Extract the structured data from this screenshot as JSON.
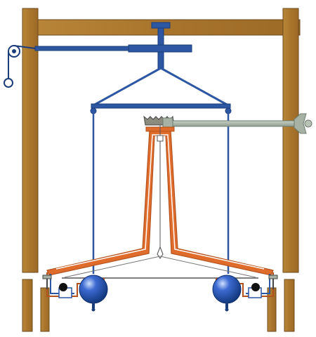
{
  "figure": {
    "description_text": "",
    "colors": {
      "frame_wood": "#B07A2E",
      "frame_edge": "#6E4A1E",
      "blue": "#2D57A3",
      "blue_dark": "#1B3E7A",
      "copper": "#E06C2B",
      "copper_dark": "#B4521E",
      "steel": "#A7B2A4",
      "steel_dark": "#6E7D70",
      "thread": "#777777",
      "black": "#111111",
      "background": "#FFFFFF"
    },
    "icons": [
      "pulley-wheel-icon",
      "torsion-head-knob-icon",
      "lead-sphere-icon",
      "small-ball-icon"
    ]
  }
}
